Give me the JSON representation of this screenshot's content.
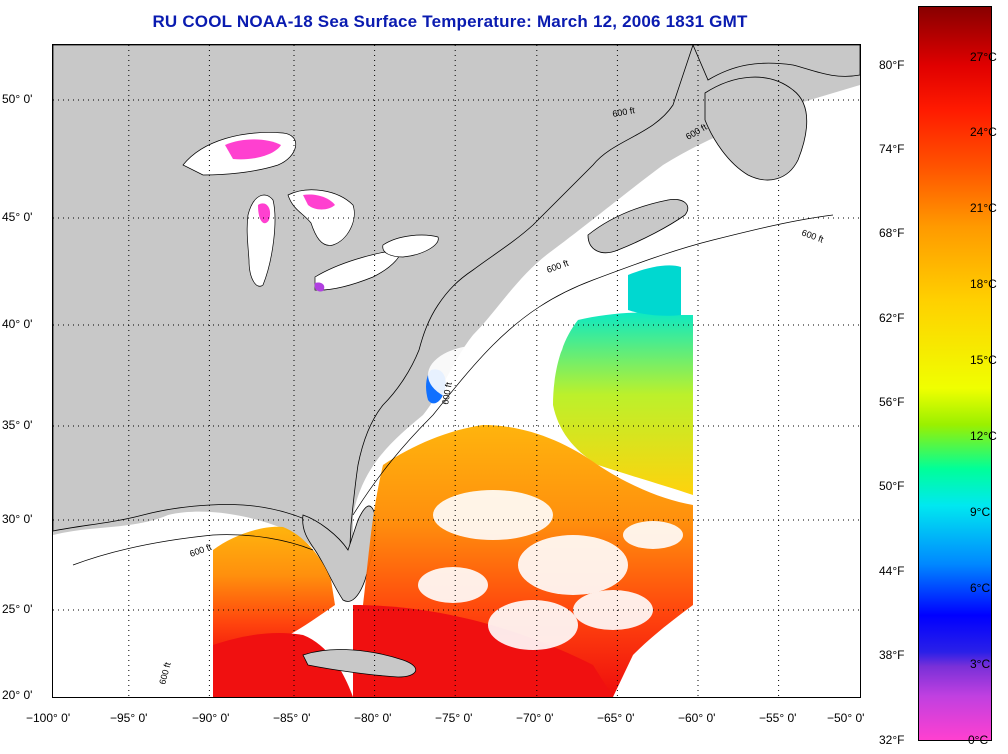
{
  "title": "RU COOL  NOAA-18  Sea Surface Temperature:  March 12, 2006 1831 GMT",
  "map": {
    "lon_labels": [
      "−100° 0'",
      "−95° 0'",
      "−90° 0'",
      "−85° 0'",
      "−80° 0'",
      "−75° 0'",
      "−70° 0'",
      "−65° 0'",
      "−60° 0'",
      "−55° 0'",
      "−50° 0'"
    ],
    "lat_labels": [
      "50° 0'",
      "45° 0'",
      "40° 0'",
      "35° 0'",
      "30° 0'",
      "25° 0'",
      "20° 0'"
    ],
    "contour_labels": [
      "600 ft",
      "600 ft",
      "600 ft",
      "600 ft",
      "600 ft",
      "600 ft",
      "600 ft"
    ],
    "colors": {
      "land": "#c8c8c8",
      "cloud_or_no_data": "#ffffff",
      "coastline": "#000000"
    }
  },
  "colorbar": {
    "fahrenheit_labels": [
      "80°F",
      "74°F",
      "68°F",
      "62°F",
      "56°F",
      "50°F",
      "44°F",
      "38°F",
      "32°F"
    ],
    "celsius_labels": [
      "27°C",
      "24°C",
      "21°C",
      "18°C",
      "15°C",
      "12°C",
      "9°C",
      "6°C",
      "3°C",
      "0°C"
    ]
  }
}
